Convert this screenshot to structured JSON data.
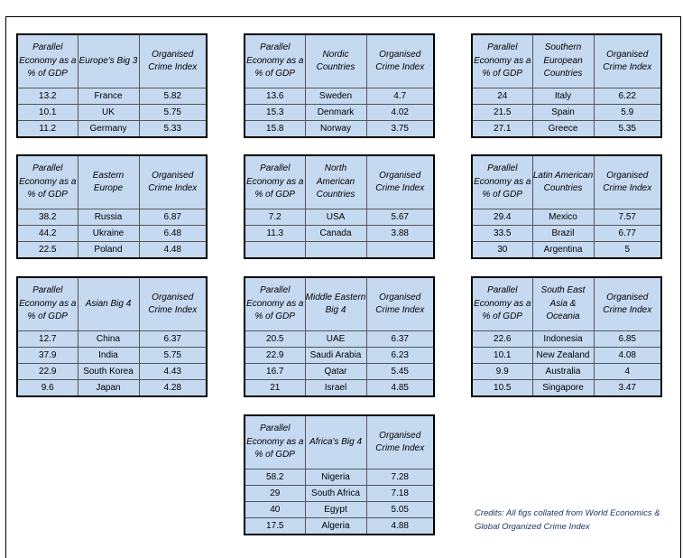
{
  "tables": [
    {
      "headers": [
        "Parallel Economy as a % of GDP",
        "Europe's Big 3",
        "Organised Crime Index"
      ],
      "rows": [
        [
          "13.2",
          "France",
          "5.82"
        ],
        [
          "10.1",
          "UK",
          "5.75"
        ],
        [
          "11.2",
          "Germany",
          "5.33"
        ]
      ]
    },
    {
      "headers": [
        "Parallel Economy as a % of GDP",
        "Nordic Countries",
        "Organised Crime Index"
      ],
      "rows": [
        [
          "13.6",
          "Sweden",
          "4.7"
        ],
        [
          "15.3",
          "Denmark",
          "4.02"
        ],
        [
          "15.8",
          "Norway",
          "3.75"
        ]
      ]
    },
    {
      "headers": [
        "Parallel Economy as a % of GDP",
        "Southern European Countries",
        "Organised Crime Index"
      ],
      "rows": [
        [
          "24",
          "Italy",
          "6.22"
        ],
        [
          "21.5",
          "Spain",
          "5.9"
        ],
        [
          "27.1",
          "Greece",
          "5.35"
        ]
      ]
    },
    {
      "headers": [
        "Parallel Economy as a % of GDP",
        "Eastern Europe",
        "Organised Crime Index"
      ],
      "rows": [
        [
          "38.2",
          "Russia",
          "6.87"
        ],
        [
          "44.2",
          "Ukraine",
          "6.48"
        ],
        [
          "22.5",
          "Poland",
          "4.48"
        ]
      ]
    },
    {
      "headers": [
        "Parallel Economy as a % of GDP",
        "North American Countries",
        "Organised Crime Index"
      ],
      "rows": [
        [
          "7.2",
          "USA",
          "5.67"
        ],
        [
          "11.3",
          "Canada",
          "3.88"
        ],
        [
          "",
          "",
          ""
        ]
      ]
    },
    {
      "headers": [
        "Parallel Economy as a % of GDP",
        "Latin American Countries",
        "Organised Crime Index"
      ],
      "rows": [
        [
          "29.4",
          "Mexico",
          "7.57"
        ],
        [
          "33.5",
          "Brazil",
          "6.77"
        ],
        [
          "30",
          "Argentina",
          "5"
        ]
      ]
    },
    {
      "headers": [
        "Parallel Economy as a % of GDP",
        "Asian Big 4",
        "Organised Crime Index"
      ],
      "rows": [
        [
          "12.7",
          "China",
          "6.37"
        ],
        [
          "37.9",
          "India",
          "5.75"
        ],
        [
          "22.9",
          "South Korea",
          "4.43"
        ],
        [
          "9.6",
          "Japan",
          "4.28"
        ]
      ]
    },
    {
      "headers": [
        "Parallel Economy as a % of GDP",
        "Middle Eastern Big 4",
        "Organised Crime Index"
      ],
      "rows": [
        [
          "20.5",
          "UAE",
          "6.37"
        ],
        [
          "22.9",
          "Saudi Arabia",
          "6.23"
        ],
        [
          "16.7",
          "Qatar",
          "5.45"
        ],
        [
          "21",
          "Israel",
          "4.85"
        ]
      ]
    },
    {
      "headers": [
        "Parallel Economy as a % of GDP",
        "South East Asia & Oceania",
        "Organised Crime Index"
      ],
      "rows": [
        [
          "22.6",
          "Indonesia",
          "6.85"
        ],
        [
          "10.1",
          "New Zealand",
          "4.08"
        ],
        [
          "9.9",
          "Australia",
          "4"
        ],
        [
          "10.5",
          "Singapore",
          "3.47"
        ]
      ]
    },
    {
      "headers": [
        "Parallel Economy as a % of GDP",
        "Africa's Big 4",
        "Organised Crime Index"
      ],
      "rows": [
        [
          "58.2",
          "Nigeria",
          "7.28"
        ],
        [
          "29",
          "South Africa",
          "7.18"
        ],
        [
          "40",
          "Egypt",
          "5.05"
        ],
        [
          "17.5",
          "Algeria",
          "4.88"
        ]
      ]
    }
  ],
  "credits": "Credits: All figs collated from World Economics & Global Organized Crime Index",
  "colors": {
    "cell_fill": "#c5d9f1",
    "border": "#000000",
    "credits_text": "#1f3864"
  }
}
